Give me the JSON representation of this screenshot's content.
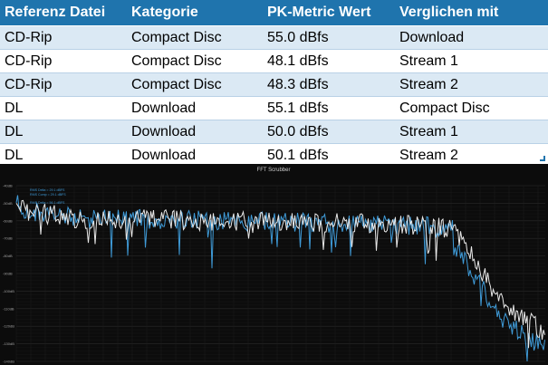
{
  "table": {
    "headers": [
      "Referenz Datei",
      "Kategorie",
      "PK-Metric Wert",
      "Verglichen mit"
    ],
    "rows": [
      [
        "CD-Rip",
        "Compact Disc",
        "55.0 dBfs",
        "Download"
      ],
      [
        "CD-Rip",
        "Compact Disc",
        "48.1 dBfs",
        "Stream 1"
      ],
      [
        "CD-Rip",
        "Compact Disc",
        "48.3 dBfs",
        "Stream 2"
      ],
      [
        "DL",
        "Download",
        "55.1 dBfs",
        "Compact Disc"
      ],
      [
        "DL",
        "Download",
        "50.0 dBfs",
        "Stream 1"
      ],
      [
        "DL",
        "Download",
        "50.1 dBfs",
        "Stream 2"
      ]
    ]
  },
  "fft": {
    "title": "FFT Scrubber",
    "legend": [
      "RMS Delta = 29.1 dBFS",
      "RMS Comp = 29.1 dBFS",
      "RMS Delta = 56.1 dBFS"
    ],
    "y_tick_labels": [
      "-40dB",
      "-50dB",
      "-60dB",
      "-70dB",
      "-80dB",
      "-90dB",
      "-100dB",
      "-110dB",
      "-120dB",
      "-130dB",
      "-140dB"
    ],
    "colors": {
      "background": "#0c0c0c",
      "grid": "#2a2a2a",
      "series_a": "#e8e8e8",
      "series_b": "#3f9bd8"
    }
  }
}
